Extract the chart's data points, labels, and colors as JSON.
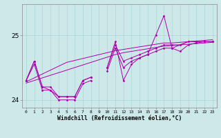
{
  "title": "",
  "xlabel": "Windchill (Refroidissement éolien,°C)",
  "background_color": "#cce8e8",
  "grid_color": "#aad4d4",
  "line_color": "#aa00aa",
  "x_hours": [
    0,
    1,
    2,
    3,
    4,
    5,
    6,
    7,
    8,
    9,
    10,
    11,
    12,
    13,
    14,
    15,
    16,
    17,
    18,
    19,
    20,
    21,
    22,
    23
  ],
  "series1": [
    24.3,
    24.6,
    24.2,
    24.2,
    24.05,
    24.05,
    24.05,
    24.3,
    24.35,
    null,
    24.5,
    24.85,
    24.6,
    24.65,
    24.7,
    24.75,
    24.8,
    24.85,
    24.85,
    24.85,
    24.9,
    24.9,
    24.9,
    24.9
  ],
  "series2": [
    24.3,
    24.55,
    24.15,
    24.15,
    24.0,
    24.0,
    24.0,
    24.25,
    24.3,
    null,
    24.45,
    24.8,
    24.5,
    24.6,
    24.65,
    24.7,
    24.75,
    24.8,
    24.8,
    24.85,
    24.9,
    24.9,
    24.9,
    24.9
  ],
  "series_main": [
    24.3,
    24.6,
    24.2,
    24.15,
    24.05,
    24.05,
    24.05,
    24.3,
    24.35,
    null,
    24.5,
    24.9,
    24.3,
    24.55,
    24.65,
    24.7,
    25.0,
    25.3,
    24.8,
    24.75,
    24.85,
    24.88,
    24.9,
    24.9
  ],
  "series_regr1": [
    24.28,
    24.34,
    24.4,
    24.46,
    24.52,
    24.58,
    24.61,
    24.64,
    24.67,
    24.7,
    24.73,
    24.76,
    24.78,
    24.8,
    24.82,
    24.84,
    24.86,
    24.88,
    24.88,
    24.89,
    24.9,
    24.91,
    24.92,
    24.93
  ],
  "series_regr2": [
    24.26,
    24.3,
    24.34,
    24.38,
    24.42,
    24.46,
    24.5,
    24.54,
    24.58,
    24.62,
    24.66,
    24.7,
    24.73,
    24.75,
    24.77,
    24.79,
    24.81,
    24.83,
    24.84,
    24.85,
    24.86,
    24.87,
    24.88,
    24.89
  ],
  "ylim": [
    23.88,
    25.48
  ],
  "yticks": [
    24,
    25
  ],
  "xtick_fontsize": 4.5,
  "ytick_fontsize": 6.5,
  "xlabel_fontsize": 5.8,
  "lw": 0.7,
  "marker_size": 1.5
}
